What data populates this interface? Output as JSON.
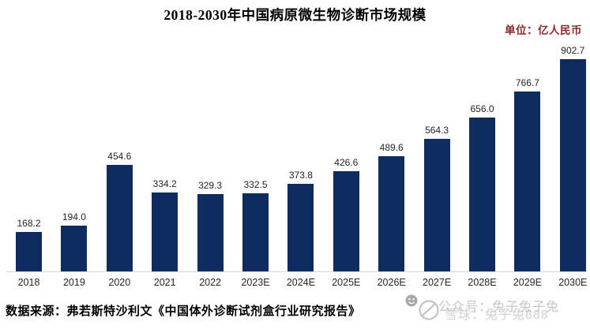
{
  "title": "2018-2030年中国病原微生物诊断市场规模",
  "unit_label": "单位：亿人民币",
  "source": "数据来源：弗若斯特沙利文《中国体外诊断试剂盒行业研究报告》",
  "watermark": {
    "text_top": "公众号：兔子兔子兔",
    "text_bottom": "雪球：兔子兔888"
  },
  "colors": {
    "bar": "#0e2c5f",
    "title_text": "#000000",
    "unit_text": "#8b2a2a",
    "value_label": "#262626",
    "axis_label": "#262626",
    "axis_line": "#d9d9d9",
    "source_text": "#000000",
    "watermark_text": "#c6c6c6",
    "watermark_icon": "#b5b5b5"
  },
  "chart_data": {
    "type": "bar",
    "title": "2018-2030年中国病原微生物诊断市场规模",
    "unit": "亿人民币",
    "categories": [
      "2018",
      "2019",
      "2020",
      "2021",
      "2022",
      "2023E",
      "2024E",
      "2025E",
      "2026E",
      "2027E",
      "2028E",
      "2029E",
      "2030E"
    ],
    "values": [
      168.2,
      194.0,
      454.6,
      334.2,
      329.3,
      332.5,
      373.8,
      426.6,
      489.6,
      564.3,
      656.0,
      766.7,
      902.7
    ],
    "xlabel": "",
    "ylabel": "",
    "ylim": [
      0,
      950
    ],
    "grid": false,
    "legend": "none",
    "value_labels": true
  }
}
